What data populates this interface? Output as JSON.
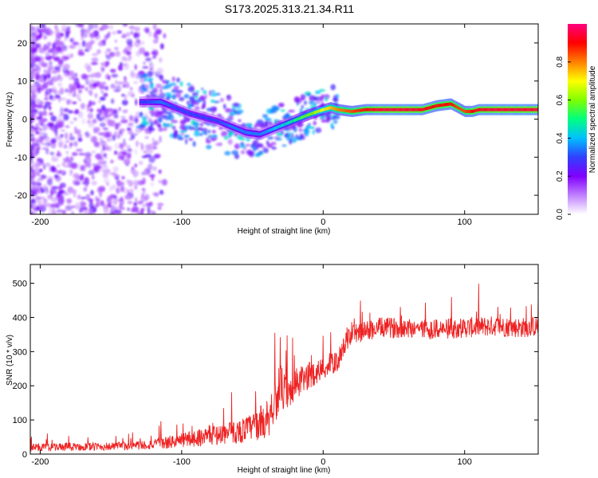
{
  "title": "S173.2025.313.21.34.R11",
  "chart_data": [
    {
      "type": "heatmap",
      "name": "spectrogram",
      "xlabel": "Height of straight line (km)",
      "ylabel": "Frequency (Hz)",
      "xlim": [
        -207,
        152
      ],
      "ylim": [
        -25,
        25
      ],
      "x_ticks": [
        -200,
        -100,
        0,
        100
      ],
      "y_ticks": [
        -20,
        -10,
        0,
        10,
        20
      ],
      "colorbar": {
        "label": "Normalized spectral amplitude",
        "range": [
          0,
          1
        ],
        "ticks": [
          "0.0",
          "0.2",
          "0.4",
          "0.6",
          "0.8"
        ],
        "stops": [
          "#ffffff",
          "#c080ff",
          "#8000ff",
          "#3040ff",
          "#00c0ff",
          "#00ff80",
          "#80ff00",
          "#ffff00",
          "#ff8000",
          "#ff0000",
          "#ff0080"
        ]
      },
      "ridge": {
        "x": [
          -125,
          -115,
          -105,
          -95,
          -85,
          -75,
          -65,
          -55,
          -45,
          -35,
          -25,
          -15,
          -8,
          0,
          5,
          10,
          20,
          30,
          40,
          50,
          60,
          70,
          80,
          90,
          95,
          100,
          105,
          110,
          120,
          130,
          140,
          150
        ],
        "y": [
          4.5,
          4.5,
          3.0,
          1.5,
          0.5,
          -0.5,
          -2.0,
          -3.5,
          -4.0,
          -2.5,
          -1.0,
          0.5,
          1.5,
          2.5,
          3.0,
          2.5,
          2.0,
          2.5,
          2.5,
          2.5,
          2.5,
          2.5,
          3.5,
          4.0,
          3.0,
          2.0,
          2.0,
          2.5,
          2.5,
          2.5,
          2.5,
          2.5
        ],
        "amplitude": [
          0.3,
          0.35,
          0.3,
          0.3,
          0.3,
          0.3,
          0.35,
          0.35,
          0.35,
          0.4,
          0.45,
          0.55,
          0.6,
          0.7,
          0.75,
          0.8,
          0.85,
          0.9,
          0.95,
          0.95,
          0.95,
          0.92,
          0.9,
          0.9,
          0.85,
          0.85,
          0.9,
          0.92,
          0.95,
          0.95,
          0.95,
          0.95
        ]
      }
    },
    {
      "type": "line",
      "name": "snr",
      "xlabel": "Height of straight line (km)",
      "ylabel": "SNR (10 * v/v)",
      "xlim": [
        -207,
        152
      ],
      "ylim": [
        0,
        555
      ],
      "x_ticks": [
        -200,
        -100,
        0,
        100
      ],
      "y_ticks": [
        0,
        100,
        200,
        300,
        400,
        500
      ],
      "color": "#ee2222",
      "trend": {
        "x": [
          -207,
          -150,
          -120,
          -100,
          -80,
          -60,
          -50,
          -40,
          -35,
          -30,
          -25,
          -20,
          -10,
          0,
          10,
          15,
          20,
          30,
          40,
          60,
          80,
          100,
          120,
          140,
          152
        ],
        "y": [
          20,
          22,
          28,
          40,
          55,
          65,
          80,
          100,
          150,
          200,
          160,
          200,
          230,
          250,
          270,
          320,
          350,
          360,
          370,
          370,
          365,
          370,
          375,
          370,
          375
        ]
      },
      "noise_amplitude": [
        12,
        12,
        15,
        22,
        28,
        35,
        40,
        60,
        70,
        65,
        55,
        50,
        40,
        35,
        30,
        30,
        30,
        30,
        30,
        30,
        30,
        30,
        30,
        30,
        30
      ]
    }
  ]
}
